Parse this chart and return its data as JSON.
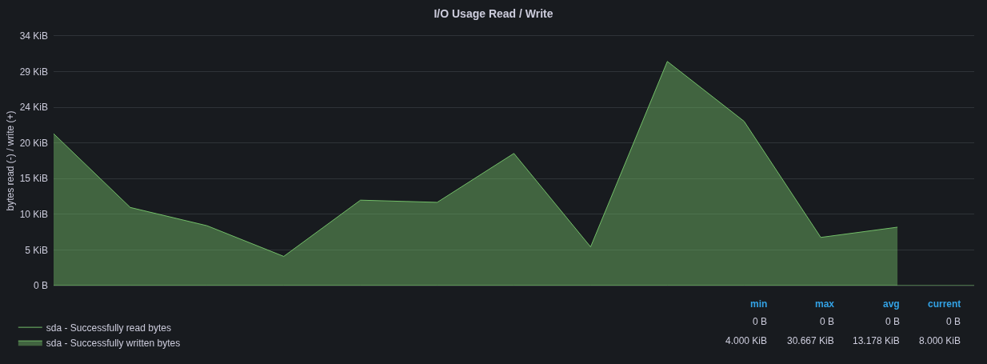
{
  "chart_data": {
    "type": "area",
    "title": "I/O Usage Read / Write",
    "ylabel": "bytes read (-) / write (+)",
    "categories": [
      null,
      null,
      null,
      null,
      null,
      null,
      null,
      null,
      null,
      null,
      null,
      null,
      null
    ],
    "series": [
      {
        "name": "sda - Successfully read bytes",
        "type": "line",
        "color": "#73bf69",
        "values": [
          0,
          0,
          0,
          0,
          0,
          0,
          0,
          0,
          0,
          0,
          0,
          0,
          0
        ]
      },
      {
        "name": "sda - Successfully written bytes",
        "color": "#73bf69",
        "values": [
          20.8,
          10.7,
          8.2,
          4.0,
          11.7,
          11.4,
          18.1,
          5.3,
          30.7,
          22.5,
          6.6,
          8.0,
          null
        ]
      }
    ],
    "ylim": [
      0,
      34.18
    ],
    "yticks": [
      {
        "value": 0,
        "label": "0 B"
      },
      {
        "value": 4.883,
        "label": "5 KiB"
      },
      {
        "value": 9.766,
        "label": "10 KiB"
      },
      {
        "value": 14.648,
        "label": "15 KiB"
      },
      {
        "value": 19.531,
        "label": "20 KiB"
      },
      {
        "value": 24.414,
        "label": "24 KiB"
      },
      {
        "value": 29.297,
        "label": "29 KiB"
      },
      {
        "value": 34.18,
        "label": "34 KiB"
      }
    ],
    "grid": "y",
    "legend": "bottom",
    "annotations": [
      "min",
      "max",
      "avg",
      "current",
      "0 B",
      "0 B",
      "0 B",
      "0 B",
      "4.000 KiB",
      "30.667 KiB",
      "13.178 KiB",
      "8.000 KiB"
    ]
  }
}
